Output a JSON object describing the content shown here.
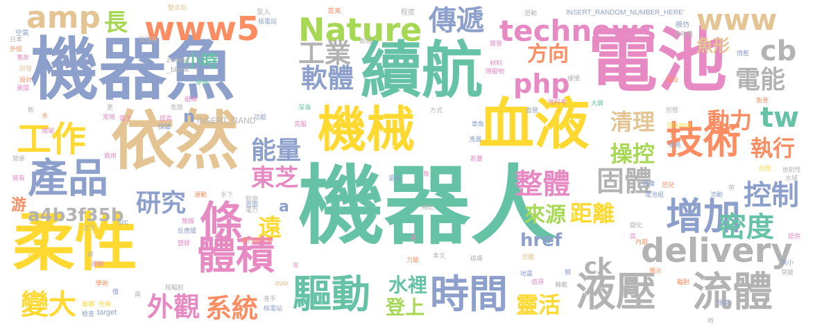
{
  "words": [
    {
      "text": "機器人",
      "color": "#66c2a5"
    },
    {
      "text": "電池",
      "color": "#e78ac3"
    },
    {
      "text": "機器魚",
      "color": "#8da0cb"
    },
    {
      "text": "續航",
      "color": "#66c2a5"
    },
    {
      "text": "依然",
      "color": "#e5c494"
    },
    {
      "text": "血液",
      "color": "#ffd92f"
    },
    {
      "text": "柔性",
      "color": "#ffd92f"
    },
    {
      "text": "機械",
      "color": "#ffd92f"
    },
    {
      "text": "技術",
      "color": "#fc8d62"
    },
    {
      "text": "液壓",
      "color": "#b3b3b3"
    },
    {
      "text": "流體",
      "color": "#b3b3b3"
    },
    {
      "text": "產品",
      "color": "#8da0cb"
    },
    {
      "text": "條",
      "color": "#e78ac3"
    },
    {
      "text": "體積",
      "color": "#e78ac3"
    },
    {
      "text": "驅動",
      "color": "#66c2a5"
    },
    {
      "text": "時間",
      "color": "#8da0cb"
    },
    {
      "text": "增加",
      "color": "#8da0cb"
    },
    {
      "text": "Nature",
      "color": "#a6d854"
    },
    {
      "text": "technews",
      "color": "#e78ac3"
    },
    {
      "text": "www5",
      "color": "#fc8d62"
    },
    {
      "text": "www",
      "color": "#e5c494"
    },
    {
      "text": "amp",
      "color": "#e5c494"
    },
    {
      "text": "delivery",
      "color": "#b3b3b3"
    },
    {
      "text": "工作",
      "color": "#ffd92f"
    },
    {
      "text": "傳遞",
      "color": "#8da0cb"
    },
    {
      "text": "工業",
      "color": "#b3b3b3"
    },
    {
      "text": "軟體",
      "color": "#8da0cb"
    },
    {
      "text": "php",
      "color": "#e78ac3"
    },
    {
      "text": "方向",
      "color": "#fc8d62"
    },
    {
      "text": "電能",
      "color": "#b3b3b3"
    },
    {
      "text": "cb",
      "color": "#b3b3b3"
    },
    {
      "text": "tw",
      "color": "#66c2a5"
    },
    {
      "text": "能量",
      "color": "#8da0cb"
    },
    {
      "text": "清理",
      "color": "#e5c494"
    },
    {
      "text": "動力",
      "color": "#fc8d62"
    },
    {
      "text": "操控",
      "color": "#a6d854"
    },
    {
      "text": "執行",
      "color": "#fc8d62"
    },
    {
      "text": "固體",
      "color": "#b3b3b3"
    },
    {
      "text": "控制",
      "color": "#8da0cb"
    },
    {
      "text": "密度",
      "color": "#66c2a5"
    },
    {
      "text": "整體",
      "color": "#e78ac3"
    },
    {
      "text": "東芝",
      "color": "#e78ac3"
    },
    {
      "text": "來源",
      "color": "#a6d854"
    },
    {
      "text": "距離",
      "color": "#ffd92f"
    },
    {
      "text": "研究",
      "color": "#8da0cb"
    },
    {
      "text": "a4b3f35b",
      "color": "#b3b3b3"
    },
    {
      "text": "遠",
      "color": "#ffd92f"
    },
    {
      "text": "外觀",
      "color": "#e78ac3"
    },
    {
      "text": "系統",
      "color": "#fc8d62"
    },
    {
      "text": "變大",
      "color": "#ffd92f"
    },
    {
      "text": "水裡",
      "color": "#66c2a5"
    },
    {
      "text": "登上",
      "color": "#a6d854"
    },
    {
      "text": "靈活",
      "color": "#ffd92f"
    },
    {
      "text": "href",
      "color": "#8da0cb"
    },
    {
      "text": "ck",
      "color": "#b3b3b3"
    },
    {
      "text": "長",
      "color": "#a6d854"
    },
    {
      "text": "小時",
      "color": "#66c2a5"
    },
    {
      "text": "魚形",
      "color": "#e5c494"
    },
    {
      "text": "n",
      "color": "#8da0cb"
    },
    {
      "text": "游",
      "color": "#fc8d62"
    },
    {
      "text": "a",
      "color": "#8da0cb"
    },
    {
      "text": "INSERT_RANDOM_NUMBER_HERE'",
      "color": "#8da0cb"
    },
    {
      "text": "INSERT_RAND",
      "color": "#b3b3b3"
    },
    {
      "text": "zoneid",
      "color": "#b3b3b3"
    },
    {
      "text": "_blank'",
      "color": "#b3b3b3"
    },
    {
      "text": "Source",
      "color": "#ffd92f"
    },
    {
      "text": "src",
      "color": "#8da0cb"
    },
    {
      "text": "target",
      "color": "#8da0cb"
    },
    {
      "text": "avw",
      "color": "#e5c494"
    },
    {
      "text": "img",
      "color": "#ffd92f"
    },
    {
      "text": "整合到",
      "color": "#e5c494"
    },
    {
      "text": "泵入",
      "color": "#b3b3b3"
    },
    {
      "text": "並未",
      "color": "#fc8d62"
    },
    {
      "text": "程度",
      "color": "#b3b3b3"
    },
    {
      "text": "遊動",
      "color": "#b3b3b3"
    },
    {
      "text": "模仿",
      "color": "#8da0cb"
    },
    {
      "text": "意味著",
      "color": "#b3b3b3"
    },
    {
      "text": "日本",
      "color": "#b3b3b3"
    },
    {
      "text": "空氣",
      "color": "#8da0cb"
    },
    {
      "text": "外殼",
      "color": "#fc8d62"
    },
    {
      "text": "事故",
      "color": "#e78ac3"
    },
    {
      "text": "研發",
      "color": "#e5c494"
    },
    {
      "text": "設計",
      "color": "#fc8d62"
    },
    {
      "text": "美國",
      "color": "#e78ac3"
    },
    {
      "text": "康乃爾大學",
      "color": "#fc8d62"
    },
    {
      "text": "高強度",
      "color": "#b3b3b3"
    },
    {
      "text": "核電站",
      "color": "#8da0cb"
    },
    {
      "text": "製造",
      "color": "#b3b3b3"
    },
    {
      "text": "開發",
      "color": "#e78ac3"
    },
    {
      "text": "材料",
      "color": "#e78ac3"
    },
    {
      "text": "障礙物",
      "color": "#e78ac3"
    },
    {
      "text": "緩慢",
      "color": "#b3b3b3"
    },
    {
      "text": "擠壓",
      "color": "#8da0cb"
    },
    {
      "text": "階段",
      "color": "#fc8d62"
    },
    {
      "text": "穿過",
      "color": "#66c2a5"
    },
    {
      "text": "組織",
      "color": "#e78ac3"
    },
    {
      "text": "危險",
      "color": "#b3b3b3"
    },
    {
      "text": "更",
      "color": "#b3b3b3"
    },
    {
      "text": "水",
      "color": "#fc8d62"
    },
    {
      "text": "新",
      "color": "#b3b3b3"
    },
    {
      "text": "常用",
      "color": "#e78ac3"
    },
    {
      "text": "電子",
      "color": "#e78ac3"
    },
    {
      "text": "提高",
      "color": "#e78ac3"
    },
    {
      "text": "採礦",
      "color": "#8da0cb"
    },
    {
      "text": "功能",
      "color": "#8da0cb"
    },
    {
      "text": "深海",
      "color": "#66c2a5"
    },
    {
      "text": "方式",
      "color": "#b3b3b3"
    },
    {
      "text": "血管",
      "color": "#8da0cb"
    },
    {
      "text": "地科考",
      "color": "#e78ac3"
    },
    {
      "text": "大屏",
      "color": "#66c2a5"
    },
    {
      "text": "形態",
      "color": "#b3b3b3"
    },
    {
      "text": "魚骨",
      "color": "#fc8d62"
    },
    {
      "text": "現場",
      "color": "#e78ac3"
    },
    {
      "text": "克服",
      "color": "#e78ac3"
    },
    {
      "text": "章魚",
      "color": "#8da0cb"
    },
    {
      "text": "洩漏",
      "color": "#8da0cb"
    },
    {
      "text": "愛",
      "color": "#fc8d62"
    },
    {
      "text": "福島",
      "color": "#8da0cb"
    },
    {
      "text": "放射性",
      "color": "#b3b3b3"
    },
    {
      "text": "商用",
      "color": "#e78ac3"
    },
    {
      "text": "若要",
      "color": "#e78ac3"
    },
    {
      "text": "白色",
      "color": "#ffd92f"
    },
    {
      "text": "水域",
      "color": "#b3b3b3"
    },
    {
      "text": "簡單",
      "color": "#b3b3b3"
    },
    {
      "text": "量產",
      "color": "#8da0cb"
    },
    {
      "text": "魚",
      "color": "#e78ac3"
    },
    {
      "text": "海嘯",
      "color": "#8da0cb"
    },
    {
      "text": "范兒",
      "color": "#fc8d62"
    },
    {
      "text": "電池組",
      "color": "#8da0cb"
    },
    {
      "text": "帶",
      "color": "#b3b3b3"
    },
    {
      "text": "流動",
      "color": "#8da0cb"
    },
    {
      "text": "裝有",
      "color": "#e78ac3"
    },
    {
      "text": "運動",
      "color": "#fc8d62"
    },
    {
      "text": "水下",
      "color": "#b3b3b3"
    },
    {
      "text": "首圖",
      "color": "#8da0cb"
    },
    {
      "text": "勁測",
      "color": "#b3b3b3"
    },
    {
      "text": "電力",
      "color": "#b3b3b3"
    },
    {
      "text": "相比",
      "color": "#b3b3b3"
    },
    {
      "text": "之下",
      "color": "#b3b3b3"
    },
    {
      "text": "無線",
      "color": "#e78ac3"
    },
    {
      "text": "反應爐",
      "color": "#8da0cb"
    },
    {
      "text": "塑膠",
      "color": "#e78ac3"
    },
    {
      "text": "變化",
      "color": "#b3b3b3"
    },
    {
      "text": "內部",
      "color": "#fc8d62"
    },
    {
      "text": "提供",
      "color": "#e78ac3"
    },
    {
      "text": "高",
      "color": "#e78ac3"
    },
    {
      "text": "款",
      "color": "#e78ac3"
    },
    {
      "text": "總",
      "color": "#b3b3b3"
    },
    {
      "text": "揮動",
      "color": "#e78ac3"
    },
    {
      "text": "年",
      "color": "#e78ac3"
    },
    {
      "text": "本文",
      "color": "#b3b3b3"
    },
    {
      "text": "力能",
      "color": "#fc8d62"
    },
    {
      "text": "線膚",
      "color": "#b3b3b3"
    },
    {
      "text": "流體",
      "color": "#e5c494"
    },
    {
      "text": "類",
      "color": "#8da0cb"
    },
    {
      "text": "狹小",
      "color": "#8da0cb"
    },
    {
      "text": "突破",
      "color": "#b3b3b3"
    },
    {
      "text": "預示",
      "color": "#fc8d62"
    },
    {
      "text": "輻射",
      "color": "#fc8d62"
    },
    {
      "text": "學術",
      "color": "#fc8d62"
    },
    {
      "text": "儀",
      "color": "#8da0cb"
    },
    {
      "text": "核輻射",
      "color": "#b3b3b3"
    },
    {
      "text": "地震",
      "color": "#8da0cb"
    },
    {
      "text": "值得",
      "color": "#e78ac3"
    },
    {
      "text": "轉載",
      "color": "#b3b3b3"
    },
    {
      "text": "兩",
      "color": "#b3b3b3"
    },
    {
      "text": "魚類",
      "color": "#ffd92f"
    },
    {
      "text": "作用",
      "color": "#ffd92f"
    },
    {
      "text": "檢查",
      "color": "#8da0cb"
    },
    {
      "text": "身手",
      "color": "#b3b3b3"
    },
    {
      "text": "核電站",
      "color": "#8da0cb"
    },
    {
      "text": "環境",
      "color": "#8da0cb"
    },
    {
      "text": "時",
      "color": "#b3b3b3"
    }
  ]
}
